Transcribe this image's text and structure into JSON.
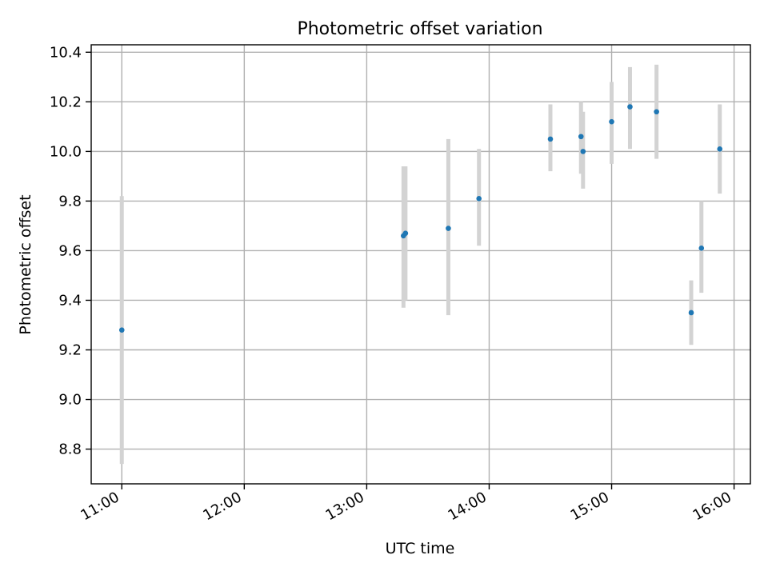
{
  "chart_data": {
    "type": "scatter",
    "title": "Photometric offset variation",
    "xlabel": "UTC time",
    "ylabel": "Photometric offset",
    "x_unit": "UTC time (HH:MM)",
    "xlim": [
      "10:45",
      "16:08"
    ],
    "ylim": [
      8.66,
      10.43
    ],
    "x_ticks": [
      "11:00",
      "12:00",
      "13:00",
      "14:00",
      "15:00",
      "16:00"
    ],
    "y_ticks": [
      "8.8",
      "9.0",
      "9.2",
      "9.4",
      "9.6",
      "9.8",
      "10.0",
      "10.2",
      "10.4"
    ],
    "grid": true,
    "legend": "none",
    "colors": {
      "points": "#1f77b4",
      "error_bars": "#d3d3d3",
      "grid": "#b0b0b0",
      "axes": "#000000"
    },
    "series": [
      {
        "points": [
          {
            "x": "11:00",
            "y": 9.28,
            "y_low": 8.74,
            "y_high": 9.82
          },
          {
            "x": "13:18",
            "y": 9.66,
            "y_low": 9.37,
            "y_high": 9.94
          },
          {
            "x": "13:19",
            "y": 9.67,
            "y_low": 9.4,
            "y_high": 9.94
          },
          {
            "x": "13:40",
            "y": 9.69,
            "y_low": 9.34,
            "y_high": 10.05
          },
          {
            "x": "13:55",
            "y": 9.81,
            "y_low": 9.62,
            "y_high": 10.01
          },
          {
            "x": "14:30",
            "y": 10.05,
            "y_low": 9.92,
            "y_high": 10.19
          },
          {
            "x": "14:45",
            "y": 10.06,
            "y_low": 9.91,
            "y_high": 10.2
          },
          {
            "x": "14:46",
            "y": 10.0,
            "y_low": 9.85,
            "y_high": 10.16
          },
          {
            "x": "15:00",
            "y": 10.12,
            "y_low": 9.95,
            "y_high": 10.28
          },
          {
            "x": "15:09",
            "y": 10.18,
            "y_low": 10.01,
            "y_high": 10.34
          },
          {
            "x": "15:22",
            "y": 10.16,
            "y_low": 9.97,
            "y_high": 10.35
          },
          {
            "x": "15:39",
            "y": 9.35,
            "y_low": 9.22,
            "y_high": 9.48
          },
          {
            "x": "15:44",
            "y": 9.61,
            "y_low": 9.43,
            "y_high": 9.8
          },
          {
            "x": "15:53",
            "y": 10.01,
            "y_low": 9.83,
            "y_high": 10.19
          }
        ]
      }
    ]
  }
}
